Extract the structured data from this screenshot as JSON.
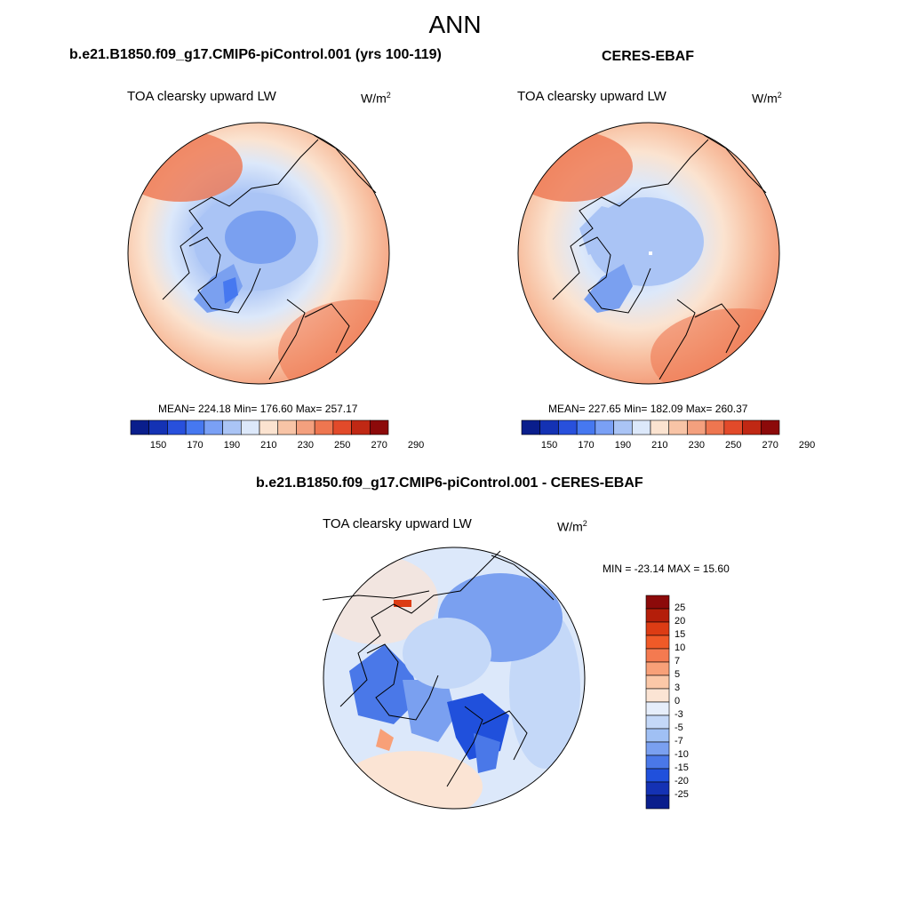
{
  "main_title": "ANN",
  "panels": [
    {
      "title": "b.e21.B1850.f09_g17.CMIP6-piControl.001 (yrs 100-119)",
      "variable": "TOA clearsky upward LW",
      "units_base": "W/m",
      "units_exp": "2",
      "stats": "MEAN= 224.18  Min= 176.60  Max= 257.17"
    },
    {
      "title": "CERES-EBAF",
      "variable": "TOA clearsky upward LW",
      "units_base": "W/m",
      "units_exp": "2",
      "stats": "MEAN= 227.65  Min= 182.09  Max= 260.37"
    },
    {
      "title": "b.e21.B1850.f09_g17.CMIP6-piControl.001 - CERES-EBAF",
      "variable": "TOA clearsky upward LW",
      "units_base": "W/m",
      "units_exp": "2",
      "stats": "MIN = -23.14 MAX =  15.60"
    }
  ],
  "colorbar_abs": {
    "labels": [
      "150",
      "170",
      "190",
      "210",
      "230",
      "250",
      "270",
      "290"
    ],
    "colors": [
      "#0a1e8c",
      "#1432b4",
      "#2850dc",
      "#4678f0",
      "#7aa0f5",
      "#aac4f5",
      "#dce8fa",
      "#fbe3d0",
      "#f8c4a6",
      "#f4a07e",
      "#ee7650",
      "#e24a2a",
      "#c02814",
      "#8c0a0a"
    ]
  },
  "colorbar_diff": {
    "labels": [
      "25",
      "20",
      "15",
      "10",
      "7",
      "5",
      "3",
      "0",
      "-3",
      "-5",
      "-7",
      "-10",
      "-15",
      "-20",
      "-25"
    ],
    "colors": [
      "#8c0a0a",
      "#b41e0a",
      "#dc3c14",
      "#f05a28",
      "#f47a50",
      "#f8a078",
      "#fbc8a8",
      "#fbe4d4",
      "#e6eefb",
      "#c4d8f8",
      "#a0c0f4",
      "#7aa0f0",
      "#4a78e8",
      "#2050dc",
      "#1432b4",
      "#0a1e8c"
    ]
  }
}
